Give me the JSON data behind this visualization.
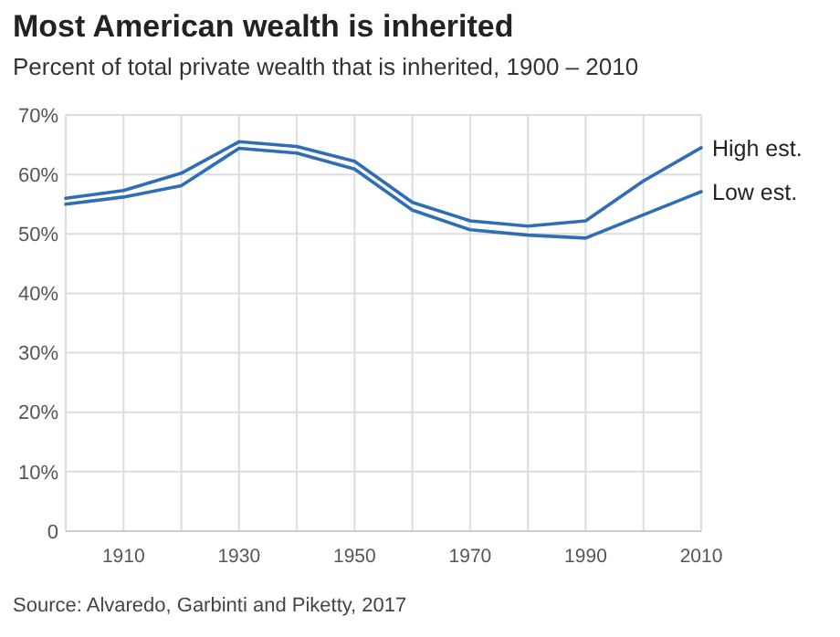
{
  "chart_data": {
    "type": "line",
    "title": "Most American wealth is inherited",
    "subtitle": "Percent of total private wealth that is inherited, 1900 – 2010",
    "x": [
      1900,
      1910,
      1920,
      1930,
      1940,
      1950,
      1960,
      1970,
      1980,
      1990,
      2000,
      2010
    ],
    "series": [
      {
        "name": "High est.",
        "color": "#2f6db5",
        "values": [
          56,
          57.3,
          60.2,
          65.5,
          64.7,
          62.2,
          55.3,
          52.2,
          51.3,
          52.2,
          58.9,
          64.5
        ]
      },
      {
        "name": "Low est.",
        "color": "#2f6db5",
        "values": [
          55,
          56.2,
          58.1,
          64.4,
          63.6,
          60.9,
          54,
          50.7,
          49.8,
          49.3,
          53.2,
          57.1
        ]
      }
    ],
    "xlim": [
      1900,
      2010
    ],
    "xticks": [
      {
        "value": 1900,
        "label": null
      },
      1910,
      {
        "value": 1920,
        "label": null
      },
      1930,
      {
        "value": 1940,
        "label": null
      },
      1950,
      {
        "value": 1960,
        "label": null
      },
      1970,
      {
        "value": 1980,
        "label": null
      },
      1990,
      {
        "value": 2000,
        "label": null
      },
      2010
    ],
    "ylim": [
      0,
      70
    ],
    "yticks": [
      {
        "value": 0,
        "label": "0"
      },
      {
        "value": 10,
        "label": "10%"
      },
      {
        "value": 20,
        "label": "20%"
      },
      {
        "value": 30,
        "label": "30%"
      },
      {
        "value": 40,
        "label": "40%"
      },
      {
        "value": 50,
        "label": "50%"
      },
      {
        "value": 60,
        "label": "60%"
      },
      {
        "value": 70,
        "label": "70%"
      }
    ],
    "grid": true,
    "line_style": "solid",
    "marker": "none",
    "annotations": [
      "Source: Alvaredo, Garbinti and Piketty, 2017"
    ]
  }
}
